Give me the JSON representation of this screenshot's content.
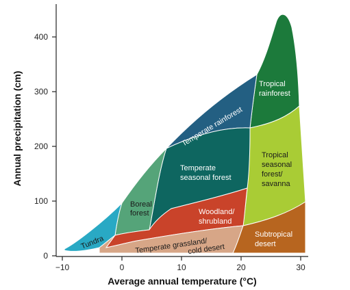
{
  "axes": {
    "x_title": "Average annual temperature (°C)",
    "y_title": "Annual precipitation (cm)",
    "x_ticks": [
      "−10",
      "0",
      "10",
      "20",
      "30"
    ],
    "y_ticks": [
      "0",
      "100",
      "200",
      "300",
      "400"
    ]
  },
  "biomes": {
    "tundra": {
      "label": "Tundra",
      "color": "#29a9c4"
    },
    "boreal_forest": {
      "line1": "Boreal",
      "line2": "forest",
      "color": "#55a479"
    },
    "temperate_rainforest": {
      "label": "Temperate rainforest",
      "color": "#235f82"
    },
    "temperate_seasonal_forest": {
      "line1": "Temperate",
      "line2": "seasonal forest",
      "color": "#0e6660"
    },
    "woodland_shrubland": {
      "line1": "Woodland/",
      "line2": "shrubland",
      "color": "#c9432a"
    },
    "temperate_grassland_cold_desert": {
      "line1": "Temperate grassland/",
      "line2": "cold desert",
      "color": "#d7a687"
    },
    "tropical_rainforest": {
      "line1": "Tropical",
      "line2": "rainforest",
      "color": "#1c7a3b"
    },
    "tropical_seasonal_forest_savanna": {
      "line1": "Tropical",
      "line2": "seasonal",
      "line3": "forest/",
      "line4": "savanna",
      "color": "#a9cc35"
    },
    "subtropical_desert": {
      "line1": "Subtropical",
      "line2": "desert",
      "color": "#b7651f"
    }
  }
}
